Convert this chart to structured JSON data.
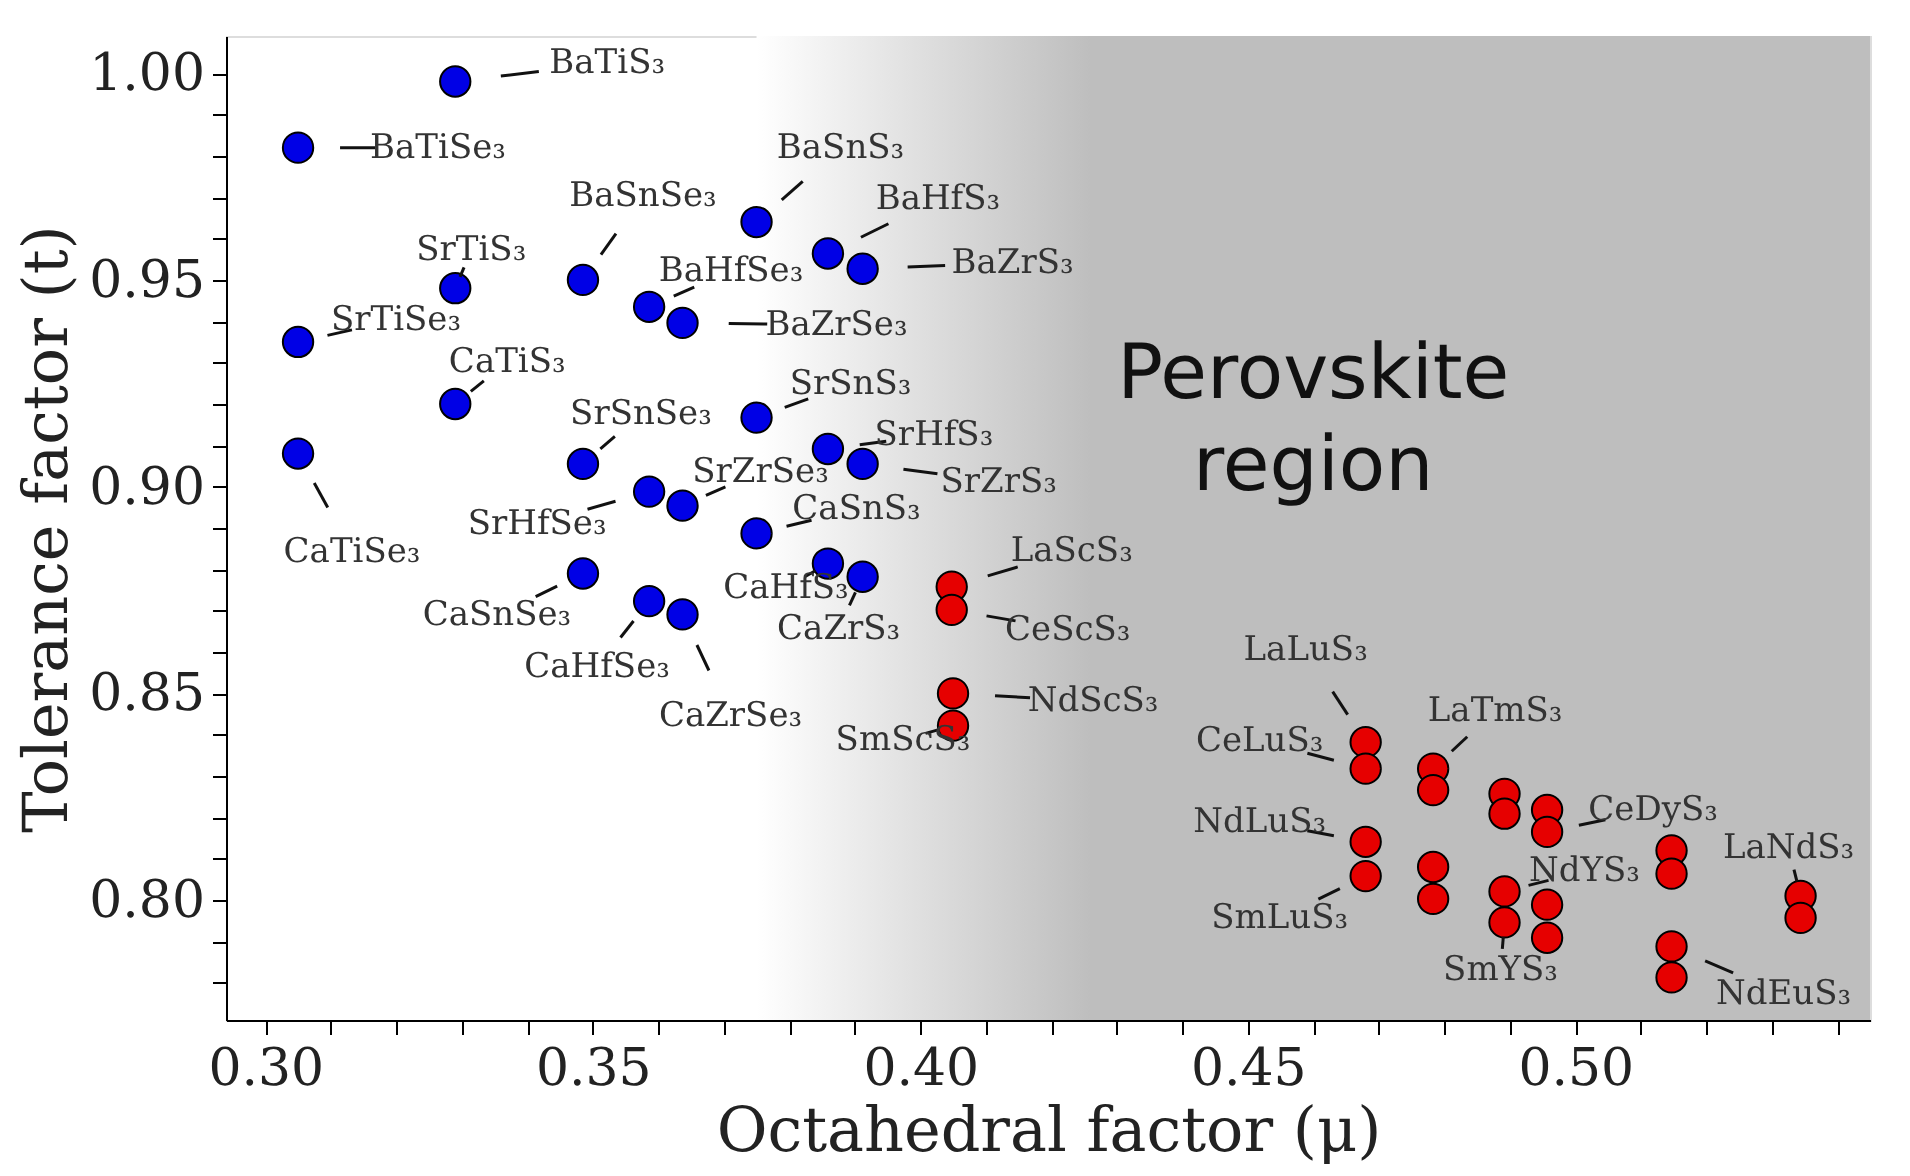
{
  "chart_data": {
    "type": "scatter",
    "xlabel": "Octahedral factor (μ)",
    "ylabel": "Tolerance factor (t)",
    "xlim": [
      0.294,
      0.545
    ],
    "ylim": [
      0.771,
      1.009
    ],
    "xticks": [
      {
        "value": 0.3,
        "label": "0.30"
      },
      {
        "value": 0.31,
        "label": null
      },
      {
        "value": 0.32,
        "label": null
      },
      {
        "value": 0.33,
        "label": null
      },
      {
        "value": 0.34,
        "label": null
      },
      {
        "value": 0.35,
        "label": "0.35"
      },
      {
        "value": 0.36,
        "label": null
      },
      {
        "value": 0.37,
        "label": null
      },
      {
        "value": 0.38,
        "label": null
      },
      {
        "value": 0.39,
        "label": null
      },
      {
        "value": 0.4,
        "label": "0.40"
      },
      {
        "value": 0.41,
        "label": null
      },
      {
        "value": 0.42,
        "label": null
      },
      {
        "value": 0.43,
        "label": null
      },
      {
        "value": 0.44,
        "label": null
      },
      {
        "value": 0.45,
        "label": "0.45"
      },
      {
        "value": 0.46,
        "label": null
      },
      {
        "value": 0.47,
        "label": null
      },
      {
        "value": 0.48,
        "label": null
      },
      {
        "value": 0.49,
        "label": null
      },
      {
        "value": 0.5,
        "label": "0.50"
      },
      {
        "value": 0.51,
        "label": null
      },
      {
        "value": 0.52,
        "label": null
      },
      {
        "value": 0.53,
        "label": null
      },
      {
        "value": 0.54,
        "label": null
      }
    ],
    "yticks": [
      {
        "value": 0.78,
        "label": null
      },
      {
        "value": 0.79,
        "label": null
      },
      {
        "value": 0.8,
        "label": "0.80"
      },
      {
        "value": 0.81,
        "label": null
      },
      {
        "value": 0.82,
        "label": null
      },
      {
        "value": 0.83,
        "label": null
      },
      {
        "value": 0.84,
        "label": null
      },
      {
        "value": 0.85,
        "label": "0.85"
      },
      {
        "value": 0.86,
        "label": null
      },
      {
        "value": 0.87,
        "label": null
      },
      {
        "value": 0.88,
        "label": null
      },
      {
        "value": 0.89,
        "label": null
      },
      {
        "value": 0.9,
        "label": "0.90"
      },
      {
        "value": 0.91,
        "label": null
      },
      {
        "value": 0.92,
        "label": null
      },
      {
        "value": 0.93,
        "label": null
      },
      {
        "value": 0.94,
        "label": null
      },
      {
        "value": 0.95,
        "label": "0.95"
      },
      {
        "value": 0.96,
        "label": null
      },
      {
        "value": 0.97,
        "label": null
      },
      {
        "value": 0.98,
        "label": null
      },
      {
        "value": 0.99,
        "label": null
      },
      {
        "value": 1.0,
        "label": "1.00"
      }
    ],
    "grid": false,
    "marker": "circle",
    "bands": [
      {
        "axis": "x",
        "from": 0.375,
        "to": 0.545,
        "label": "Perovskite region",
        "color": "#bebebe"
      }
    ],
    "series": [
      {
        "color": "#0000e6",
        "x": [
          0.329,
          0.305,
          0.329,
          0.305,
          0.329,
          0.305,
          0.3485,
          0.375,
          0.3586,
          0.3637,
          0.3859,
          0.3912,
          0.375,
          0.3485,
          0.3586,
          0.3637,
          0.3859,
          0.3912,
          0.375,
          0.3485,
          0.3859,
          0.3912,
          0.3586,
          0.3637
        ],
        "values": [
          0.998,
          0.982,
          0.948,
          0.935,
          0.92,
          0.908,
          0.95,
          0.964,
          0.9435,
          0.9396,
          0.9564,
          0.9527,
          0.9167,
          0.9055,
          0.8988,
          0.8954,
          0.9091,
          0.9055,
          0.8887,
          0.879,
          0.8814,
          0.8782,
          0.8723,
          0.8691
        ]
      },
      {
        "color": "#e60000",
        "x": [
          0.4048,
          0.4048,
          0.405,
          0.405,
          0.468,
          0.468,
          0.468,
          0.468,
          0.4783,
          0.4783,
          0.4783,
          0.4783,
          0.4892,
          0.4892,
          0.4957,
          0.4957,
          0.4892,
          0.4892,
          0.4957,
          0.4957,
          0.5147,
          0.5147,
          0.5147,
          0.5147,
          0.5344,
          0.5344
        ],
        "values": [
          0.8758,
          0.8702,
          0.85,
          0.8422,
          0.8382,
          0.8318,
          0.8141,
          0.8058,
          0.8318,
          0.8266,
          0.808,
          0.8003,
          0.8257,
          0.8209,
          0.8218,
          0.8165,
          0.8021,
          0.7946,
          0.7989,
          0.7909,
          0.812,
          0.8064,
          0.7888,
          0.7813,
          0.801,
          0.7957
        ]
      }
    ],
    "annotations": [
      {
        "text": "BaTiS₃",
        "x": 0.329,
        "y": 0.998
      },
      {
        "text": "BaTiSe₃",
        "x": 0.305,
        "y": 0.982
      },
      {
        "text": "SrTiS₃",
        "x": 0.329,
        "y": 0.948
      },
      {
        "text": "SrTiSe₃",
        "x": 0.305,
        "y": 0.935
      },
      {
        "text": "CaTiS₃",
        "x": 0.329,
        "y": 0.92
      },
      {
        "text": "CaTiSe₃",
        "x": 0.305,
        "y": 0.908
      },
      {
        "text": "BaSnSe₃",
        "x": 0.3485,
        "y": 0.95
      },
      {
        "text": "BaSnS₃",
        "x": 0.375,
        "y": 0.964
      },
      {
        "text": "BaHfSe₃",
        "x": 0.3586,
        "y": 0.9435
      },
      {
        "text": "BaZrSe₃",
        "x": 0.3637,
        "y": 0.9396
      },
      {
        "text": "BaHfS₃",
        "x": 0.3859,
        "y": 0.9564
      },
      {
        "text": "BaZrS₃",
        "x": 0.3912,
        "y": 0.9527
      },
      {
        "text": "SrSnS₃",
        "x": 0.375,
        "y": 0.9167
      },
      {
        "text": "SrSnSe₃",
        "x": 0.3485,
        "y": 0.9055
      },
      {
        "text": "SrHfSe₃",
        "x": 0.3586,
        "y": 0.8988
      },
      {
        "text": "SrZrSe₃",
        "x": 0.3637,
        "y": 0.8954
      },
      {
        "text": "SrHfS₃",
        "x": 0.3859,
        "y": 0.9091
      },
      {
        "text": "SrZrS₃",
        "x": 0.3912,
        "y": 0.9055
      },
      {
        "text": "CaSnS₃",
        "x": 0.375,
        "y": 0.8887
      },
      {
        "text": "CaSnSe₃",
        "x": 0.3485,
        "y": 0.879
      },
      {
        "text": "CaHfS₃",
        "x": 0.3859,
        "y": 0.8814
      },
      {
        "text": "CaZrS₃",
        "x": 0.3912,
        "y": 0.8782
      },
      {
        "text": "CaHfSe₃",
        "x": 0.3586,
        "y": 0.8723
      },
      {
        "text": "CaZrSe₃",
        "x": 0.3637,
        "y": 0.8691
      },
      {
        "text": "LaScS₃",
        "x": 0.4048,
        "y": 0.8758
      },
      {
        "text": "CeScS₃",
        "x": 0.4048,
        "y": 0.8702
      },
      {
        "text": "NdScS₃",
        "x": 0.405,
        "y": 0.85
      },
      {
        "text": "SmScS₃",
        "x": 0.405,
        "y": 0.8422
      },
      {
        "text": "LaLuS₃",
        "x": 0.468,
        "y": 0.8382
      },
      {
        "text": "CeLuS₃",
        "x": 0.468,
        "y": 0.8318
      },
      {
        "text": "NdLuS₃",
        "x": 0.468,
        "y": 0.8141
      },
      {
        "text": "SmLuS₃",
        "x": 0.468,
        "y": 0.8058
      },
      {
        "text": "LaTmS₃",
        "x": 0.4783,
        "y": 0.8318
      },
      {
        "text": "CeDyS₃",
        "x": 0.4957,
        "y": 0.8165
      },
      {
        "text": "NdYS₃",
        "x": 0.4892,
        "y": 0.8021
      },
      {
        "text": "SmYS₃",
        "x": 0.4892,
        "y": 0.7946
      },
      {
        "text": "NdEuS₃",
        "x": 0.5147,
        "y": 0.7888
      },
      {
        "text": "LaNdS₃",
        "x": 0.5344,
        "y": 0.801
      }
    ]
  }
}
